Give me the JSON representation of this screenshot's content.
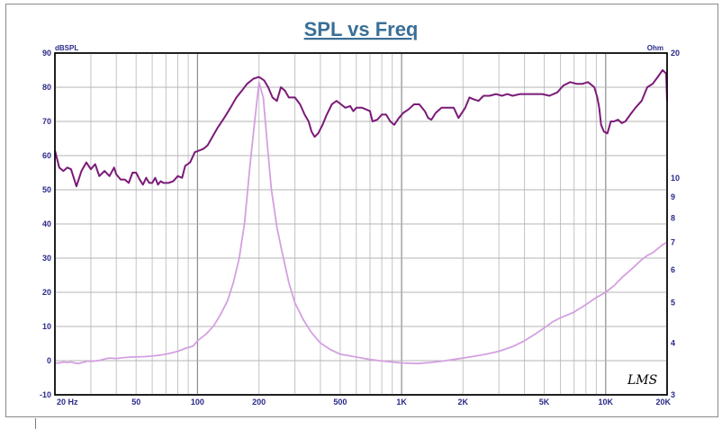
{
  "chart_data": {
    "type": "line",
    "title": "SPL vs Freq",
    "ylabel_left": "dBSPL",
    "ylabel_right": "Ohm",
    "xscale": "log",
    "xlim": [
      20,
      20000
    ],
    "ylim_left": [
      -10,
      90
    ],
    "ylim_right": [
      3,
      20
    ],
    "yscale_right": "log",
    "grid": true,
    "x_ticks": [
      {
        "value": 20,
        "label": "20  Hz"
      },
      {
        "value": 50,
        "label": "50"
      },
      {
        "value": 100,
        "label": "100"
      },
      {
        "value": 200,
        "label": "200"
      },
      {
        "value": 500,
        "label": "500"
      },
      {
        "value": 1000,
        "label": "1K"
      },
      {
        "value": 2000,
        "label": "2K"
      },
      {
        "value": 5000,
        "label": "5K"
      },
      {
        "value": 10000,
        "label": "10K"
      },
      {
        "value": 20000,
        "label": "20K"
      }
    ],
    "y_left_ticks": [
      -10,
      0,
      10,
      20,
      30,
      40,
      50,
      60,
      70,
      80,
      90
    ],
    "y_right_ticks": [
      3,
      4,
      5,
      6,
      7,
      8,
      9,
      10,
      20
    ],
    "series": [
      {
        "color": "#7b1a78",
        "axis": "left",
        "points": [
          [
            20,
            61.5
          ],
          [
            21,
            56.5
          ],
          [
            22,
            55.5
          ],
          [
            23,
            56.5
          ],
          [
            24,
            56
          ],
          [
            25.5,
            51
          ],
          [
            27,
            55.5
          ],
          [
            28.5,
            58
          ],
          [
            30,
            56
          ],
          [
            31.5,
            57.5
          ],
          [
            33,
            54
          ],
          [
            35,
            55.5
          ],
          [
            37,
            54
          ],
          [
            39,
            56.5
          ],
          [
            40,
            54.5
          ],
          [
            42,
            53
          ],
          [
            44,
            53
          ],
          [
            46,
            52
          ],
          [
            48,
            55
          ],
          [
            50,
            55
          ],
          [
            52,
            53
          ],
          [
            54,
            51.5
          ],
          [
            56,
            53.5
          ],
          [
            58,
            52
          ],
          [
            60,
            52
          ],
          [
            62,
            53.5
          ],
          [
            64,
            51.5
          ],
          [
            66,
            52.5
          ],
          [
            68,
            52
          ],
          [
            72,
            52
          ],
          [
            76,
            52.5
          ],
          [
            80,
            54
          ],
          [
            84,
            53.5
          ],
          [
            87,
            57
          ],
          [
            92,
            58
          ],
          [
            97,
            61
          ],
          [
            102,
            61.5
          ],
          [
            107,
            62
          ],
          [
            112,
            63
          ],
          [
            117,
            65
          ],
          [
            125,
            68
          ],
          [
            135,
            71
          ],
          [
            145,
            74
          ],
          [
            155,
            77
          ],
          [
            165,
            79
          ],
          [
            175,
            81
          ],
          [
            188,
            82.5
          ],
          [
            200,
            83
          ],
          [
            212,
            82
          ],
          [
            222,
            80
          ],
          [
            233,
            77
          ],
          [
            245,
            76
          ],
          [
            256,
            80
          ],
          [
            268,
            79
          ],
          [
            280,
            77
          ],
          [
            300,
            77
          ],
          [
            318,
            75
          ],
          [
            335,
            72
          ],
          [
            350,
            70
          ],
          [
            362,
            67
          ],
          [
            375,
            65.5
          ],
          [
            390,
            66.5
          ],
          [
            410,
            69
          ],
          [
            430,
            72
          ],
          [
            455,
            75
          ],
          [
            480,
            76
          ],
          [
            505,
            75
          ],
          [
            530,
            74
          ],
          [
            560,
            74.5
          ],
          [
            580,
            73
          ],
          [
            600,
            74
          ],
          [
            640,
            74
          ],
          [
            670,
            73.5
          ],
          [
            700,
            73
          ],
          [
            720,
            70
          ],
          [
            760,
            70.5
          ],
          [
            800,
            72
          ],
          [
            840,
            72
          ],
          [
            880,
            70
          ],
          [
            920,
            69
          ],
          [
            970,
            71
          ],
          [
            1020,
            72.5
          ],
          [
            1080,
            73.5
          ],
          [
            1150,
            75
          ],
          [
            1220,
            75
          ],
          [
            1300,
            73
          ],
          [
            1350,
            71
          ],
          [
            1400,
            70.5
          ],
          [
            1470,
            72.5
          ],
          [
            1570,
            74
          ],
          [
            1680,
            74
          ],
          [
            1800,
            74
          ],
          [
            1900,
            71
          ],
          [
            1950,
            72
          ],
          [
            2050,
            74
          ],
          [
            2150,
            77
          ],
          [
            2250,
            76.5
          ],
          [
            2380,
            76
          ],
          [
            2520,
            77.5
          ],
          [
            2700,
            77.5
          ],
          [
            2900,
            78
          ],
          [
            3100,
            77.5
          ],
          [
            3300,
            78
          ],
          [
            3500,
            77.5
          ],
          [
            3800,
            78
          ],
          [
            4100,
            78
          ],
          [
            4500,
            78
          ],
          [
            4900,
            78
          ],
          [
            5300,
            77.5
          ],
          [
            5800,
            78.5
          ],
          [
            6200,
            80.5
          ],
          [
            6700,
            81.5
          ],
          [
            7200,
            81
          ],
          [
            7700,
            81
          ],
          [
            8200,
            81.5
          ],
          [
            8800,
            80
          ],
          [
            9100,
            77
          ],
          [
            9300,
            74
          ],
          [
            9500,
            69
          ],
          [
            9800,
            67
          ],
          [
            10200,
            66.5
          ],
          [
            10600,
            70
          ],
          [
            11000,
            70
          ],
          [
            11500,
            70.5
          ],
          [
            12000,
            69.5
          ],
          [
            12500,
            70
          ],
          [
            13200,
            72
          ],
          [
            14000,
            74
          ],
          [
            15000,
            76
          ],
          [
            16000,
            80
          ],
          [
            17000,
            81
          ],
          [
            18000,
            83
          ],
          [
            19000,
            85
          ],
          [
            19800,
            84
          ],
          [
            20000,
            76
          ]
        ]
      },
      {
        "color": "#d4a0e0",
        "axis": "right",
        "points": [
          [
            20,
            3.58
          ],
          [
            21,
            3.58
          ],
          [
            22,
            3.6
          ],
          [
            23,
            3.59
          ],
          [
            24,
            3.6
          ],
          [
            25,
            3.58
          ],
          [
            26,
            3.57
          ],
          [
            28,
            3.6
          ],
          [
            29,
            3.62
          ],
          [
            30,
            3.61
          ],
          [
            33,
            3.63
          ],
          [
            35,
            3.66
          ],
          [
            37,
            3.68
          ],
          [
            40,
            3.67
          ],
          [
            44,
            3.69
          ],
          [
            48,
            3.7
          ],
          [
            55,
            3.71
          ],
          [
            60,
            3.72
          ],
          [
            66,
            3.74
          ],
          [
            72,
            3.77
          ],
          [
            80,
            3.82
          ],
          [
            88,
            3.89
          ],
          [
            95,
            3.93
          ],
          [
            100,
            4.05
          ],
          [
            110,
            4.2
          ],
          [
            120,
            4.4
          ],
          [
            130,
            4.7
          ],
          [
            140,
            5.05
          ],
          [
            150,
            5.6
          ],
          [
            160,
            6.4
          ],
          [
            170,
            7.8
          ],
          [
            180,
            10.5
          ],
          [
            190,
            13.5
          ],
          [
            200,
            17.0
          ],
          [
            210,
            15.6
          ],
          [
            220,
            12.0
          ],
          [
            230,
            9.4
          ],
          [
            245,
            7.6
          ],
          [
            260,
            6.6
          ],
          [
            280,
            5.6
          ],
          [
            300,
            5.0
          ],
          [
            330,
            4.55
          ],
          [
            360,
            4.25
          ],
          [
            400,
            4.0
          ],
          [
            450,
            3.85
          ],
          [
            500,
            3.76
          ],
          [
            600,
            3.7
          ],
          [
            700,
            3.65
          ],
          [
            800,
            3.62
          ],
          [
            900,
            3.6
          ],
          [
            1000,
            3.58
          ],
          [
            1200,
            3.57
          ],
          [
            1400,
            3.59
          ],
          [
            1600,
            3.62
          ],
          [
            1800,
            3.65
          ],
          [
            2000,
            3.68
          ],
          [
            2300,
            3.72
          ],
          [
            2600,
            3.76
          ],
          [
            3000,
            3.82
          ],
          [
            3500,
            3.92
          ],
          [
            4000,
            4.05
          ],
          [
            4500,
            4.2
          ],
          [
            5000,
            4.35
          ],
          [
            5500,
            4.5
          ],
          [
            6000,
            4.6
          ],
          [
            7000,
            4.75
          ],
          [
            8000,
            4.95
          ],
          [
            9000,
            5.15
          ],
          [
            10000,
            5.3
          ],
          [
            11000,
            5.5
          ],
          [
            12000,
            5.75
          ],
          [
            13000,
            5.95
          ],
          [
            14000,
            6.15
          ],
          [
            15000,
            6.35
          ],
          [
            16000,
            6.5
          ],
          [
            17000,
            6.6
          ],
          [
            18000,
            6.75
          ],
          [
            19000,
            6.9
          ],
          [
            20000,
            7.0
          ]
        ]
      }
    ]
  },
  "watermark": "LMS"
}
